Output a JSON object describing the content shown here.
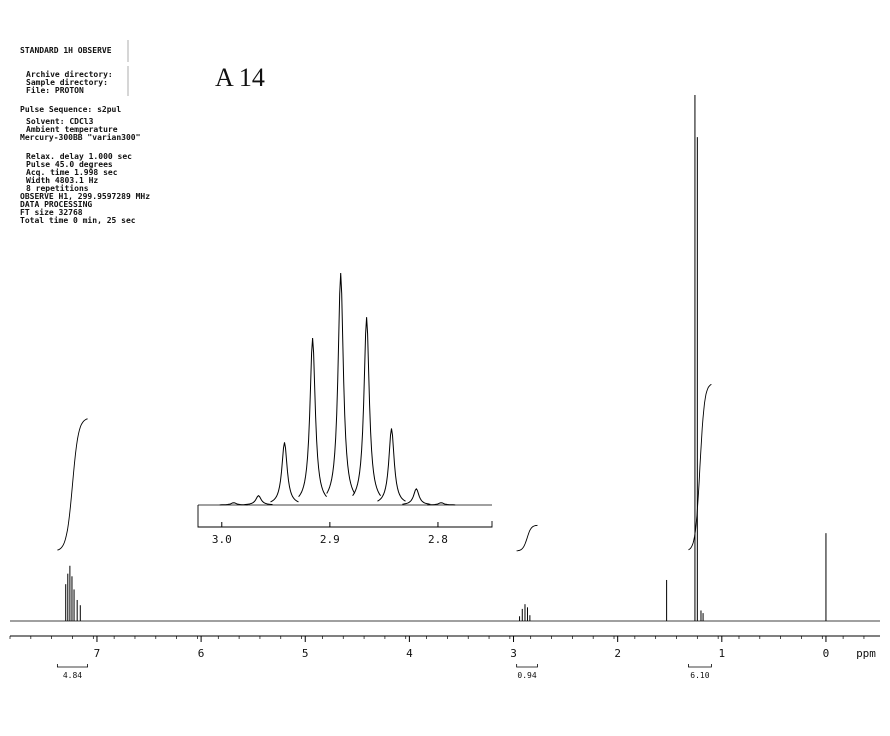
{
  "parameters": [
    "STANDARD 1H OBSERVE",
    "Archive directory:",
    "Sample directory:",
    "File: PROTON",
    "Pulse Sequence: s2pul",
    "Solvent: CDCl3",
    "Ambient temperature",
    "Mercury-300BB  \"varian300\"",
    "Relax. delay 1.000 sec",
    "Pulse 45.0 degrees",
    "Acq. time 1.998 sec",
    "Width 4803.1 Hz",
    "8 repetitions",
    "OBSERVE   H1, 299.9597289 MHz",
    "DATA PROCESSING",
    "FT size 32768",
    "Total time 0 min, 25 sec"
  ],
  "chart_data": [
    {
      "type": "nmr",
      "title": "A 14",
      "x_label": "ppm",
      "xlim": [
        7.835,
        -0.519
      ],
      "xticks": [
        7,
        6,
        5,
        4,
        3,
        2,
        1,
        0
      ],
      "ylim": [
        0,
        100
      ],
      "color": "#000000",
      "x": [
        7.3,
        7.28,
        7.26,
        7.24,
        7.22,
        7.19,
        7.16,
        2.942,
        2.916,
        2.89,
        2.866,
        2.843,
        1.53,
        1.258,
        1.235,
        1.2,
        1.18,
        0
      ],
      "values": [
        7,
        9,
        10.5,
        8.5,
        6,
        4,
        3,
        0.9,
        2.3,
        3.2,
        2.6,
        1.1,
        7.8,
        100,
        92,
        2,
        1.5,
        16.7
      ],
      "integrals": {
        "ranges": [
          [
            7.38,
            7.09
          ],
          [
            2.97,
            2.77
          ],
          [
            1.32,
            1.1
          ]
        ],
        "values": [
          4.84,
          0.94,
          6.1
        ],
        "value_labels": [
          "4.84",
          "0.94",
          "6.10"
        ]
      }
    },
    {
      "type": "nmr-inset",
      "xlim": [
        3.022,
        2.75
      ],
      "xticks": [
        {
          "value": 3,
          "label": "3.0"
        },
        2.9,
        {
          "value": 2.8,
          "label": "2.8"
        }
      ],
      "ylim": [
        0,
        100
      ],
      "color": "#000000",
      "x": [
        2.989,
        2.966,
        2.942,
        2.916,
        2.89,
        2.866,
        2.843,
        2.82,
        2.797
      ],
      "values": [
        1,
        4,
        27,
        72,
        100,
        81,
        33,
        7,
        1
      ]
    }
  ]
}
